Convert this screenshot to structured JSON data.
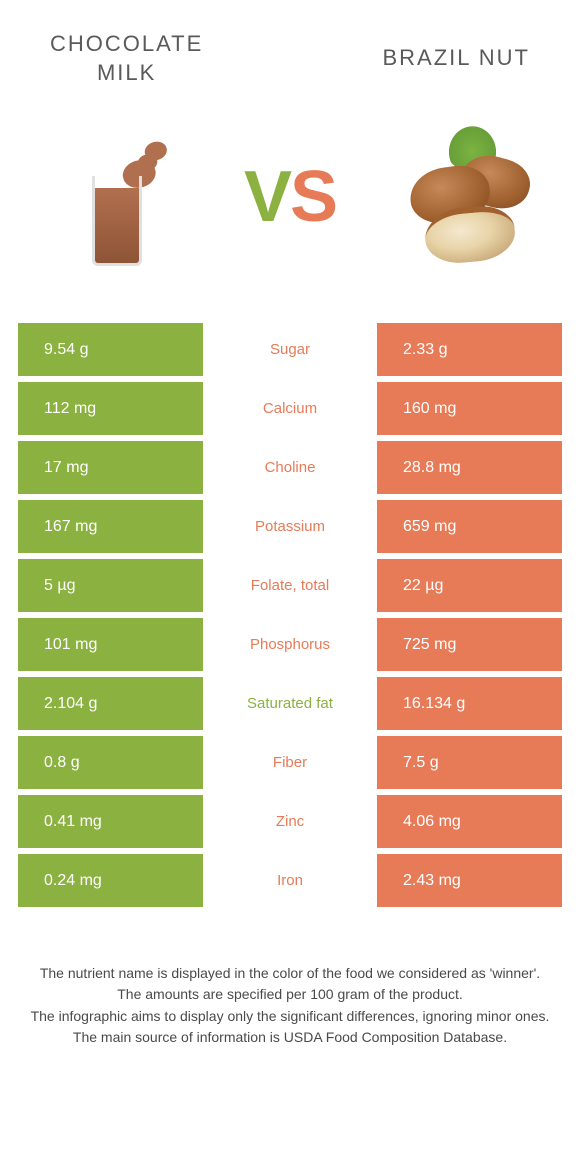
{
  "colors": {
    "left": "#8bb141",
    "right": "#e77b58",
    "row_gap": "#ffffff",
    "header_text": "#5a5a5a",
    "footer_text": "#4a4a4a"
  },
  "header": {
    "left_title": "CHOCOLATE\nMILK",
    "right_title": "BRAZIL NUT",
    "vs_v": "V",
    "vs_s": "S"
  },
  "rows": [
    {
      "left": "9.54 g",
      "label": "Sugar",
      "right": "2.33 g",
      "winner": "right"
    },
    {
      "left": "112 mg",
      "label": "Calcium",
      "right": "160 mg",
      "winner": "right"
    },
    {
      "left": "17 mg",
      "label": "Choline",
      "right": "28.8 mg",
      "winner": "right"
    },
    {
      "left": "167 mg",
      "label": "Potassium",
      "right": "659 mg",
      "winner": "right"
    },
    {
      "left": "5 µg",
      "label": "Folate, total",
      "right": "22 µg",
      "winner": "right"
    },
    {
      "left": "101 mg",
      "label": "Phosphorus",
      "right": "725 mg",
      "winner": "right"
    },
    {
      "left": "2.104 g",
      "label": "Saturated fat",
      "right": "16.134 g",
      "winner": "left"
    },
    {
      "left": "0.8 g",
      "label": "Fiber",
      "right": "7.5 g",
      "winner": "right"
    },
    {
      "left": "0.41 mg",
      "label": "Zinc",
      "right": "4.06 mg",
      "winner": "right"
    },
    {
      "left": "0.24 mg",
      "label": "Iron",
      "right": "2.43 mg",
      "winner": "right"
    }
  ],
  "footer": {
    "line1": "The nutrient name is displayed in the color of the food we considered as 'winner'.",
    "line2": "The amounts are specified per 100 gram of the product.",
    "line3": "The infographic aims to display only the significant differences, ignoring minor ones.",
    "line4": "The main source of information is USDA Food Composition Database."
  }
}
